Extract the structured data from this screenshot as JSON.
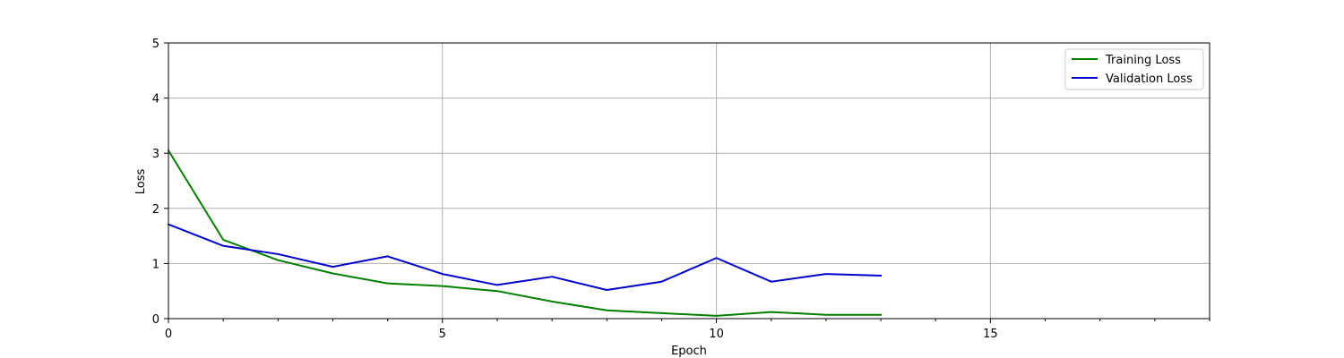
{
  "chart_data": {
    "type": "line",
    "title": "",
    "xlabel": "Epoch",
    "ylabel": "Loss",
    "xlim": [
      0,
      19
    ],
    "ylim": [
      0,
      5
    ],
    "x_major_ticks": [
      0,
      5,
      10,
      15
    ],
    "x_minor_ticks": [
      1,
      2,
      3,
      4,
      6,
      7,
      8,
      9,
      11,
      12,
      13,
      14,
      16,
      17,
      18,
      19
    ],
    "y_ticks": [
      0,
      1,
      2,
      3,
      4,
      5
    ],
    "grid": true,
    "legend_position": "top-right",
    "x": [
      0,
      1,
      2,
      3,
      4,
      5,
      6,
      7,
      8,
      9,
      10,
      11,
      12,
      13
    ],
    "series": [
      {
        "name": "Training Loss",
        "color": "#008000",
        "values": [
          3.05,
          1.43,
          1.06,
          0.82,
          0.64,
          0.59,
          0.5,
          0.31,
          0.15,
          0.1,
          0.05,
          0.12,
          0.07,
          0.07
        ]
      },
      {
        "name": "Validation Loss",
        "color": "#0000cd",
        "values": [
          1.71,
          1.32,
          1.17,
          0.94,
          1.13,
          0.81,
          0.61,
          0.76,
          0.52,
          0.67,
          1.1,
          0.67,
          0.81,
          0.78
        ]
      }
    ]
  }
}
